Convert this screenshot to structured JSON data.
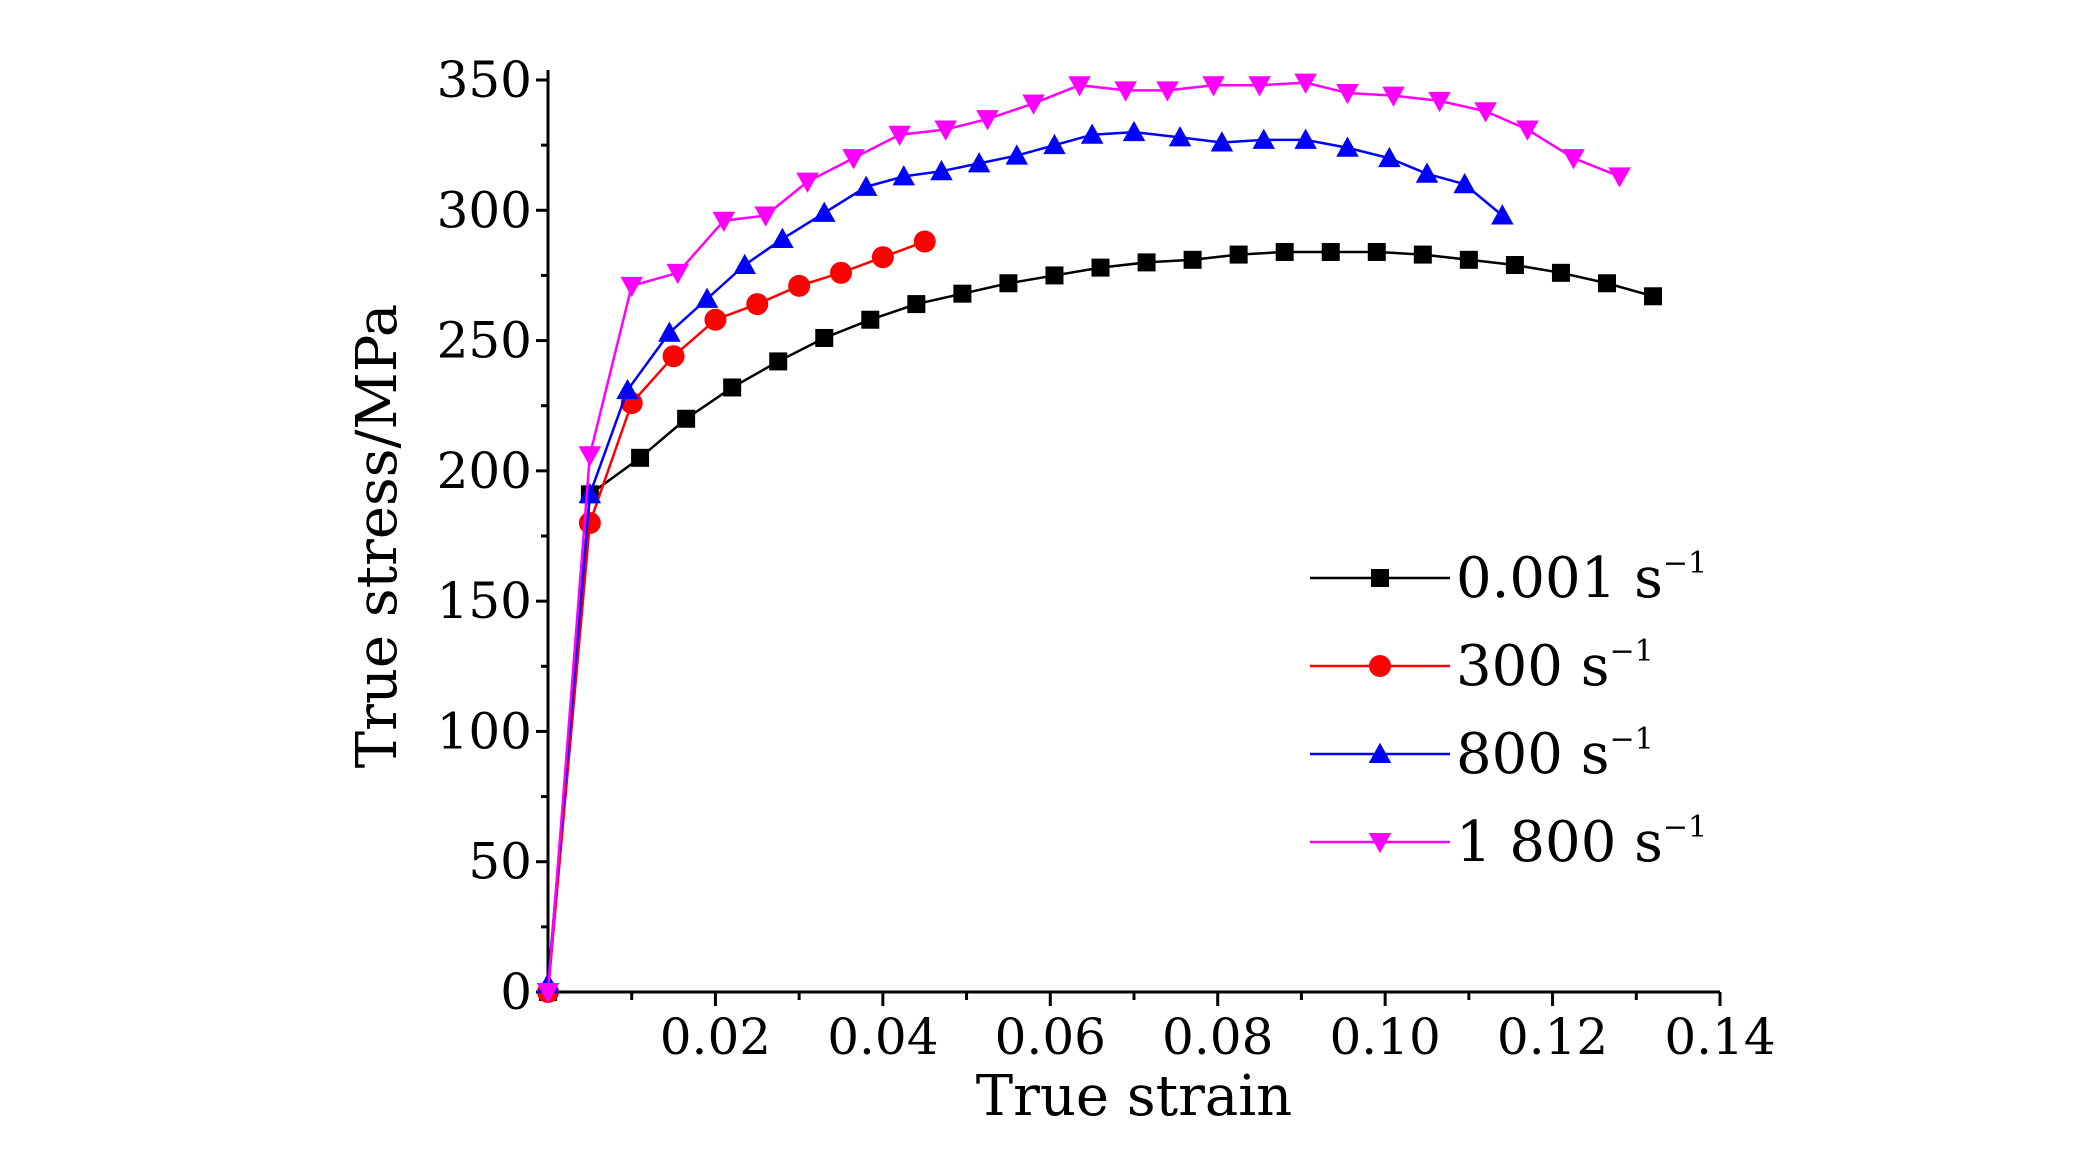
{
  "chart_data": {
    "type": "line",
    "xlabel": "True strain",
    "ylabel": "True stress/MPa",
    "xlim": [
      0,
      0.14
    ],
    "ylim": [
      0,
      350
    ],
    "x_ticks": [
      0.02,
      0.04,
      0.06,
      0.08,
      0.1,
      0.12,
      0.14
    ],
    "x_tick_labels": [
      "0.02",
      "0.04",
      "0.06",
      "0.08",
      "0.10",
      "0.12",
      "0.14"
    ],
    "y_ticks": [
      0,
      50,
      100,
      150,
      200,
      250,
      300,
      350
    ],
    "y_tick_labels": [
      "0",
      "50",
      "100",
      "150",
      "200",
      "250",
      "300",
      "350"
    ],
    "grid": false,
    "legend_position": "lower-right",
    "series": [
      {
        "name": "0.001 s",
        "name_sup": "−1",
        "color": "#000000",
        "marker": "square",
        "x": [
          0.0,
          0.005,
          0.011,
          0.0165,
          0.022,
          0.0275,
          0.033,
          0.0385,
          0.044,
          0.0495,
          0.055,
          0.0605,
          0.066,
          0.0715,
          0.077,
          0.0825,
          0.088,
          0.0935,
          0.099,
          0.1045,
          0.11,
          0.1155,
          0.121,
          0.1265,
          0.132
        ],
        "y": [
          0,
          191,
          205,
          220,
          232,
          242,
          251,
          258,
          264,
          268,
          272,
          275,
          278,
          280,
          281,
          283,
          284,
          284,
          284,
          283,
          281,
          279,
          276,
          272,
          267
        ]
      },
      {
        "name": "300 s",
        "name_sup": "−1",
        "color": "#ff0000",
        "marker": "circle",
        "x": [
          0.0,
          0.005,
          0.01,
          0.015,
          0.02,
          0.025,
          0.03,
          0.035,
          0.04,
          0.045
        ],
        "y": [
          0,
          180,
          226,
          244,
          258,
          264,
          271,
          276,
          282,
          288
        ]
      },
      {
        "name": "800 s",
        "name_sup": "−1",
        "color": "#0000ff",
        "marker": "triangle-up",
        "x": [
          0.0,
          0.005,
          0.0095,
          0.0145,
          0.019,
          0.0235,
          0.028,
          0.033,
          0.038,
          0.0425,
          0.047,
          0.0515,
          0.056,
          0.0605,
          0.065,
          0.07,
          0.0755,
          0.0805,
          0.0855,
          0.0905,
          0.0955,
          0.1005,
          0.105,
          0.1095,
          0.114
        ],
        "y": [
          3,
          191,
          231,
          253,
          266,
          279,
          289,
          299,
          309,
          313,
          315,
          318,
          321,
          325,
          329,
          330,
          328,
          326,
          327,
          327,
          324,
          320,
          314,
          310,
          298
        ]
      },
      {
        "name": "1 800 s",
        "name_sup": "−1",
        "color": "#ff00ff",
        "marker": "triangle-down",
        "x": [
          0.0,
          0.005,
          0.01,
          0.0155,
          0.021,
          0.026,
          0.031,
          0.0365,
          0.042,
          0.0475,
          0.0525,
          0.058,
          0.0635,
          0.069,
          0.074,
          0.0795,
          0.085,
          0.0905,
          0.0955,
          0.101,
          0.1065,
          0.112,
          0.117,
          0.1225,
          0.128
        ],
        "y": [
          0,
          206,
          271,
          276,
          296,
          298,
          311,
          320,
          329,
          331,
          335,
          341,
          348,
          346,
          346,
          348,
          348,
          349,
          345,
          344,
          342,
          338,
          331,
          320,
          313
        ]
      }
    ]
  }
}
